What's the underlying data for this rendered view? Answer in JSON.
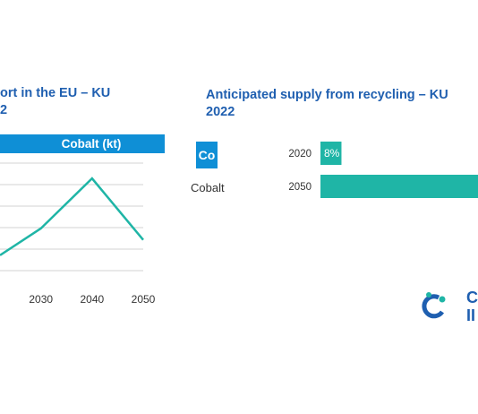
{
  "left_panel": {
    "title": "ort in the EU – KU\n2",
    "header_label": "Cobalt (kt)"
  },
  "right_panel": {
    "title": "Anticipated supply from recycling – KU\n2022",
    "element_symbol": "Co",
    "element_name": "Cobalt"
  },
  "logo": {
    "text_line1": "C",
    "text_line2": "II"
  },
  "colors": {
    "accent_blue": "#0f8fd6",
    "title_blue": "#1f5fb0",
    "teal": "#1fb5a6",
    "grid": "#d3d3d3"
  },
  "chart_data": [
    {
      "type": "line",
      "title": "Cobalt (kt)",
      "x": [
        2030,
        2040,
        2050
      ],
      "x_tick_labels": [
        "2030",
        "2040",
        "2050"
      ],
      "x_range": [
        2022,
        2050
      ],
      "series": [
        {
          "x": [
            2022,
            2030,
            2040,
            2050
          ],
          "values": [
            2,
            5.5,
            12,
            4
          ]
        }
      ],
      "ylim": [
        0,
        14
      ],
      "grid": true,
      "xlabel": "",
      "ylabel": ""
    },
    {
      "type": "bar",
      "orientation": "horizontal",
      "categories": [
        "2020",
        "2050"
      ],
      "values": [
        8,
        60
      ],
      "data_labels": [
        "8%",
        ""
      ],
      "xlim": [
        0,
        60
      ]
    }
  ]
}
